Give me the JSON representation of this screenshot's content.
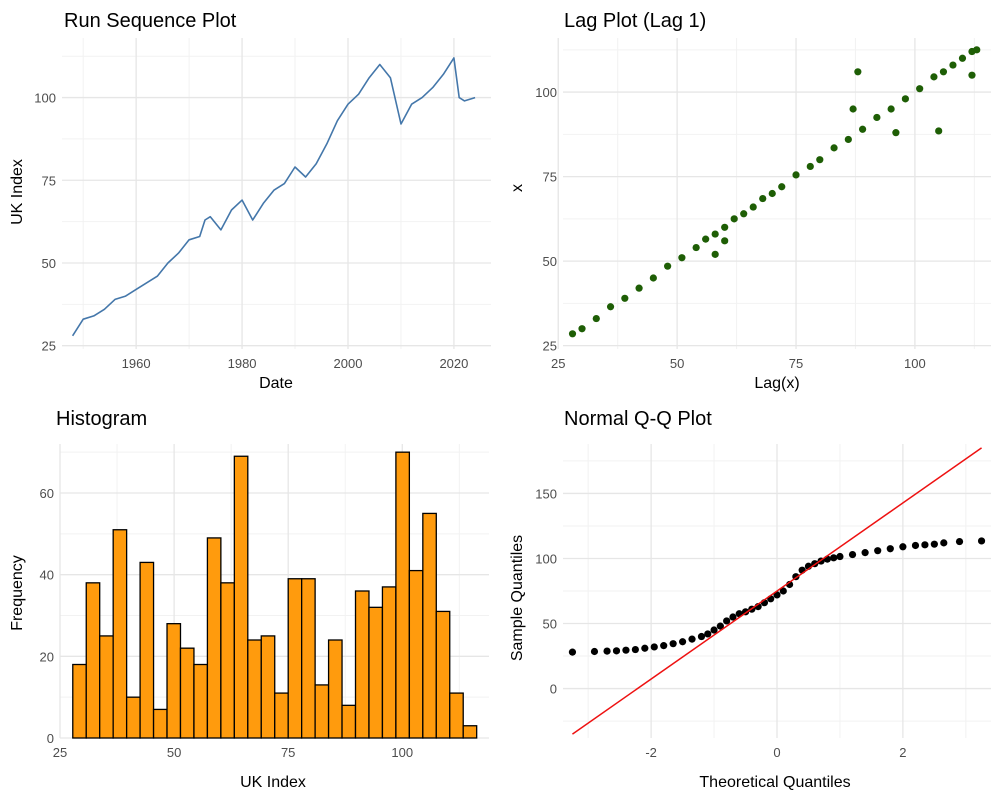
{
  "chart_data": [
    {
      "type": "line",
      "title": "Run Sequence Plot",
      "xlabel": "Date",
      "ylabel": "UK Index",
      "xlim": [
        1946,
        2027
      ],
      "ylim": [
        24,
        118
      ],
      "x_ticks": [
        1960,
        1980,
        2000,
        2020
      ],
      "x_tick_labels": [
        "1960",
        "1980",
        "2000",
        "2020"
      ],
      "y_ticks": [
        25,
        50,
        75,
        100
      ],
      "y_tick_labels": [
        "25",
        "50",
        "75",
        "100"
      ],
      "grid": true,
      "color": "#4477aa",
      "x": [
        1948,
        1950,
        1952,
        1954,
        1956,
        1958,
        1960,
        1962,
        1964,
        1966,
        1968,
        1970,
        1972,
        1973,
        1974,
        1976,
        1978,
        1980,
        1982,
        1984,
        1986,
        1988,
        1990,
        1992,
        1994,
        1996,
        1998,
        2000,
        2002,
        2004,
        2006,
        2008,
        2010,
        2012,
        2014,
        2016,
        2018,
        2020,
        2021,
        2022,
        2024
      ],
      "y": [
        28,
        33,
        34,
        36,
        39,
        40,
        42,
        44,
        46,
        50,
        53,
        57,
        58,
        63,
        64,
        60,
        66,
        69,
        63,
        68,
        72,
        74,
        79,
        76,
        80,
        86,
        93,
        98,
        101,
        106,
        110,
        106,
        92,
        98,
        100,
        103,
        107,
        112,
        100,
        99,
        100
      ]
    },
    {
      "type": "scatter",
      "title": "Lag Plot (Lag 1)",
      "xlabel": "Lag(x)",
      "ylabel": "x",
      "xlim": [
        26,
        116
      ],
      "ylim": [
        24,
        116
      ],
      "x_ticks": [
        25,
        50,
        75,
        100
      ],
      "x_tick_labels": [
        "25",
        "50",
        "75",
        "100"
      ],
      "y_ticks": [
        25,
        50,
        75,
        100
      ],
      "y_tick_labels": [
        "25",
        "50",
        "75",
        "100"
      ],
      "grid": true,
      "color": "#1e5e05",
      "x": [
        28,
        30,
        33,
        36,
        39,
        42,
        45,
        48,
        51,
        54,
        56,
        58,
        60,
        62,
        64,
        66,
        68,
        70,
        72,
        75,
        78,
        80,
        83,
        86,
        89,
        92,
        95,
        98,
        101,
        104,
        106,
        108,
        110,
        112,
        113,
        88,
        96,
        105,
        60,
        58,
        87,
        112
      ],
      "y": [
        28.5,
        30,
        33,
        36.5,
        39,
        42,
        45,
        48.5,
        51,
        54,
        56.5,
        58,
        60,
        62.5,
        64,
        66,
        68.5,
        70,
        72,
        75.5,
        78,
        80,
        83.5,
        86,
        89,
        92.5,
        95,
        98,
        101,
        104.5,
        106,
        108,
        110,
        112,
        112.5,
        106,
        88,
        88.5,
        56,
        52,
        95,
        105
      ]
    },
    {
      "type": "bar",
      "title": "Histogram",
      "xlabel": "UK Index",
      "ylabel": "Frequency",
      "xlim": [
        25,
        119
      ],
      "ylim": [
        0,
        72
      ],
      "x_ticks": [
        25,
        50,
        75,
        100
      ],
      "x_tick_labels": [
        "25",
        "50",
        "75",
        "100"
      ],
      "y_ticks": [
        0,
        20,
        40,
        60
      ],
      "y_tick_labels": [
        "0",
        "20",
        "40",
        "60"
      ],
      "grid": true,
      "color": "#ff9b0d",
      "bin_start": 27.8,
      "bin_width": 2.95,
      "values": [
        18,
        38,
        25,
        51,
        10,
        43,
        7,
        28,
        22,
        18,
        49,
        38,
        69,
        24,
        25,
        11,
        39,
        39,
        13,
        24,
        8,
        36,
        32,
        37,
        70,
        41,
        55,
        31,
        11,
        3
      ]
    },
    {
      "type": "scatter",
      "title": "Normal Q-Q Plot",
      "xlabel": "Theoretical Quantiles",
      "ylabel": "Sample Quantiles",
      "xlim": [
        -3.4,
        3.4
      ],
      "ylim": [
        -38,
        188
      ],
      "x_ticks": [
        -2,
        0,
        2
      ],
      "x_tick_labels": [
        "-2",
        "0",
        "2"
      ],
      "y_ticks": [
        0,
        50,
        100,
        150
      ],
      "y_tick_labels": [
        "0",
        "50",
        "100",
        "150"
      ],
      "grid": true,
      "color": "#000000",
      "line_color": "#ee1111",
      "reference_line": [
        [
          -3.25,
          -35
        ],
        [
          3.25,
          185
        ]
      ],
      "x": [
        -3.25,
        -2.9,
        -2.7,
        -2.55,
        -2.4,
        -2.25,
        -2.1,
        -1.95,
        -1.8,
        -1.65,
        -1.5,
        -1.35,
        -1.2,
        -1.1,
        -1.0,
        -0.9,
        -0.8,
        -0.7,
        -0.6,
        -0.5,
        -0.4,
        -0.3,
        -0.2,
        -0.1,
        0.0,
        0.1,
        0.2,
        0.3,
        0.4,
        0.5,
        0.6,
        0.7,
        0.8,
        0.9,
        1.0,
        1.2,
        1.4,
        1.6,
        1.8,
        2.0,
        2.2,
        2.35,
        2.5,
        2.65,
        2.9,
        3.25
      ],
      "y": [
        28,
        28.5,
        28.8,
        29,
        29.5,
        30,
        31,
        32,
        33,
        34.5,
        36,
        38,
        40,
        42,
        45,
        48,
        52,
        55,
        57.5,
        59,
        61,
        63,
        66,
        69,
        72,
        75,
        80,
        86,
        91,
        94,
        96,
        98,
        99.5,
        100.5,
        101.5,
        103,
        104.5,
        106,
        107.5,
        109,
        110,
        110.5,
        111,
        112,
        113,
        113.5
      ]
    }
  ]
}
